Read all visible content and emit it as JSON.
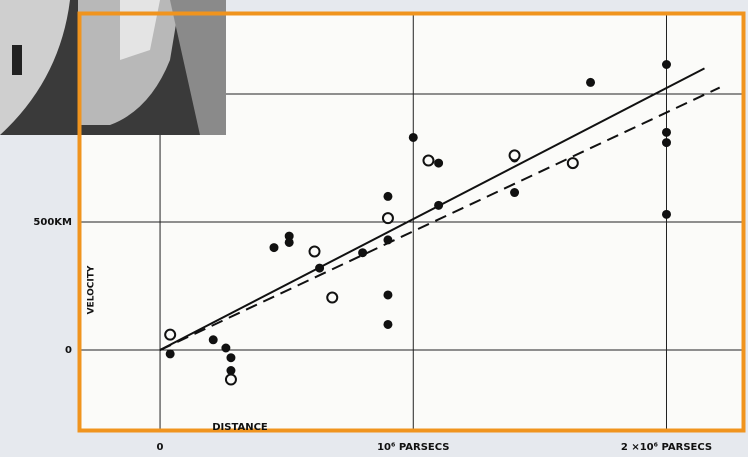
{
  "chart_data": {
    "type": "scatter",
    "y_label": "VELOCITY",
    "x_label": "DISTANCE",
    "xlim": [
      -324000,
      2310000
    ],
    "ylim": [
      -320,
      1320
    ],
    "xticks": [
      {
        "value": 0,
        "label": "0"
      },
      {
        "value": 1000000,
        "label": "10⁶ PARSECS"
      },
      {
        "value": 2000000,
        "label": "2 ×10⁶ PARSECS"
      }
    ],
    "yticks": [
      {
        "value": 0,
        "label": "0"
      },
      {
        "value": 500,
        "label": "500KM"
      }
    ],
    "ygrid": [
      0,
      500,
      1000
    ],
    "grid": true,
    "series": [
      {
        "marker": "filled",
        "color": "#111111",
        "x": [
          40000,
          210000,
          260000,
          280000,
          280000,
          450000,
          510000,
          510000,
          630000,
          800000,
          900000,
          900000,
          900000,
          900000,
          1000000,
          1100000,
          1100000,
          1400000,
          1400000,
          1700000,
          2000000,
          2000000,
          2000000,
          2000000
        ],
        "values": [
          -15,
          40,
          8,
          -30,
          -80,
          400,
          445,
          420,
          320,
          380,
          600,
          430,
          215,
          100,
          830,
          730,
          565,
          750,
          615,
          1045,
          1115,
          850,
          810,
          530
        ]
      },
      {
        "marker": "open",
        "color": "#111111",
        "x": [
          40000,
          280000,
          610000,
          680000,
          900000,
          1060000,
          1400000,
          1630000
        ],
        "values": [
          60,
          -115,
          385,
          205,
          515,
          740,
          760,
          730
        ]
      }
    ],
    "lines": [
      {
        "style": "solid",
        "color": "#111111",
        "x": [
          0,
          2150000
        ],
        "values": [
          0,
          1100
        ]
      },
      {
        "style": "dashed",
        "color": "#111111",
        "x": [
          0,
          2210000
        ],
        "values": [
          0,
          1025
        ]
      }
    ],
    "frame_color": "#f0941e"
  }
}
